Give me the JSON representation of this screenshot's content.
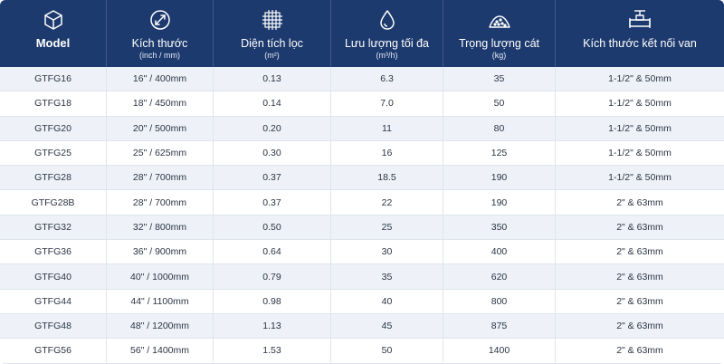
{
  "header": {
    "columns": [
      {
        "title": "Model",
        "unit": "",
        "icon": "cube-icon"
      },
      {
        "title": "Kích thước",
        "unit": "(inch / mm)",
        "icon": "diameter-icon"
      },
      {
        "title": "Diện tích lọc",
        "unit": "(m²)",
        "icon": "filter-mesh-icon"
      },
      {
        "title": "Lưu lượng tối đa",
        "unit": "(m³/h)",
        "icon": "water-drop-icon"
      },
      {
        "title": "Trọng lượng cát",
        "unit": "(kg)",
        "icon": "sand-pile-icon"
      },
      {
        "title": "Kích thước kết nối van",
        "unit": "",
        "icon": "valve-icon"
      }
    ]
  },
  "rows": [
    [
      "GTFG16",
      "16\" / 400mm",
      "0.13",
      "6.3",
      "35",
      "1-1/2\" & 50mm"
    ],
    [
      "GTFG18",
      "18\" / 450mm",
      "0.14",
      "7.0",
      "50",
      "1-1/2\" & 50mm"
    ],
    [
      "GTFG20",
      "20\" / 500mm",
      "0.20",
      "11",
      "80",
      "1-1/2\" & 50mm"
    ],
    [
      "GTFG25",
      "25\" / 625mm",
      "0.30",
      "16",
      "125",
      "1-1/2\" & 50mm"
    ],
    [
      "GTFG28",
      "28\" / 700mm",
      "0.37",
      "18.5",
      "190",
      "1-1/2\" & 50mm"
    ],
    [
      "GTFG28B",
      "28\" / 700mm",
      "0.37",
      "22",
      "190",
      "2\" & 63mm"
    ],
    [
      "GTFG32",
      "32\" / 800mm",
      "0.50",
      "25",
      "350",
      "2\" & 63mm"
    ],
    [
      "GTFG36",
      "36\" / 900mm",
      "0.64",
      "30",
      "400",
      "2\" & 63mm"
    ],
    [
      "GTFG40",
      "40\" / 1000mm",
      "0.79",
      "35",
      "620",
      "2\" & 63mm"
    ],
    [
      "GTFG44",
      "44\" / 1100mm",
      "0.98",
      "40",
      "800",
      "2\" & 63mm"
    ],
    [
      "GTFG48",
      "48\" / 1200mm",
      "1.13",
      "45",
      "875",
      "2\" & 63mm"
    ],
    [
      "GTFG56",
      "56\" / 1400mm",
      "1.53",
      "50",
      "1400",
      "2\" & 63mm"
    ]
  ],
  "colors": {
    "header_bg": "#1d3a6e",
    "row_alt": "#eef2f8",
    "row": "#ffffff"
  }
}
